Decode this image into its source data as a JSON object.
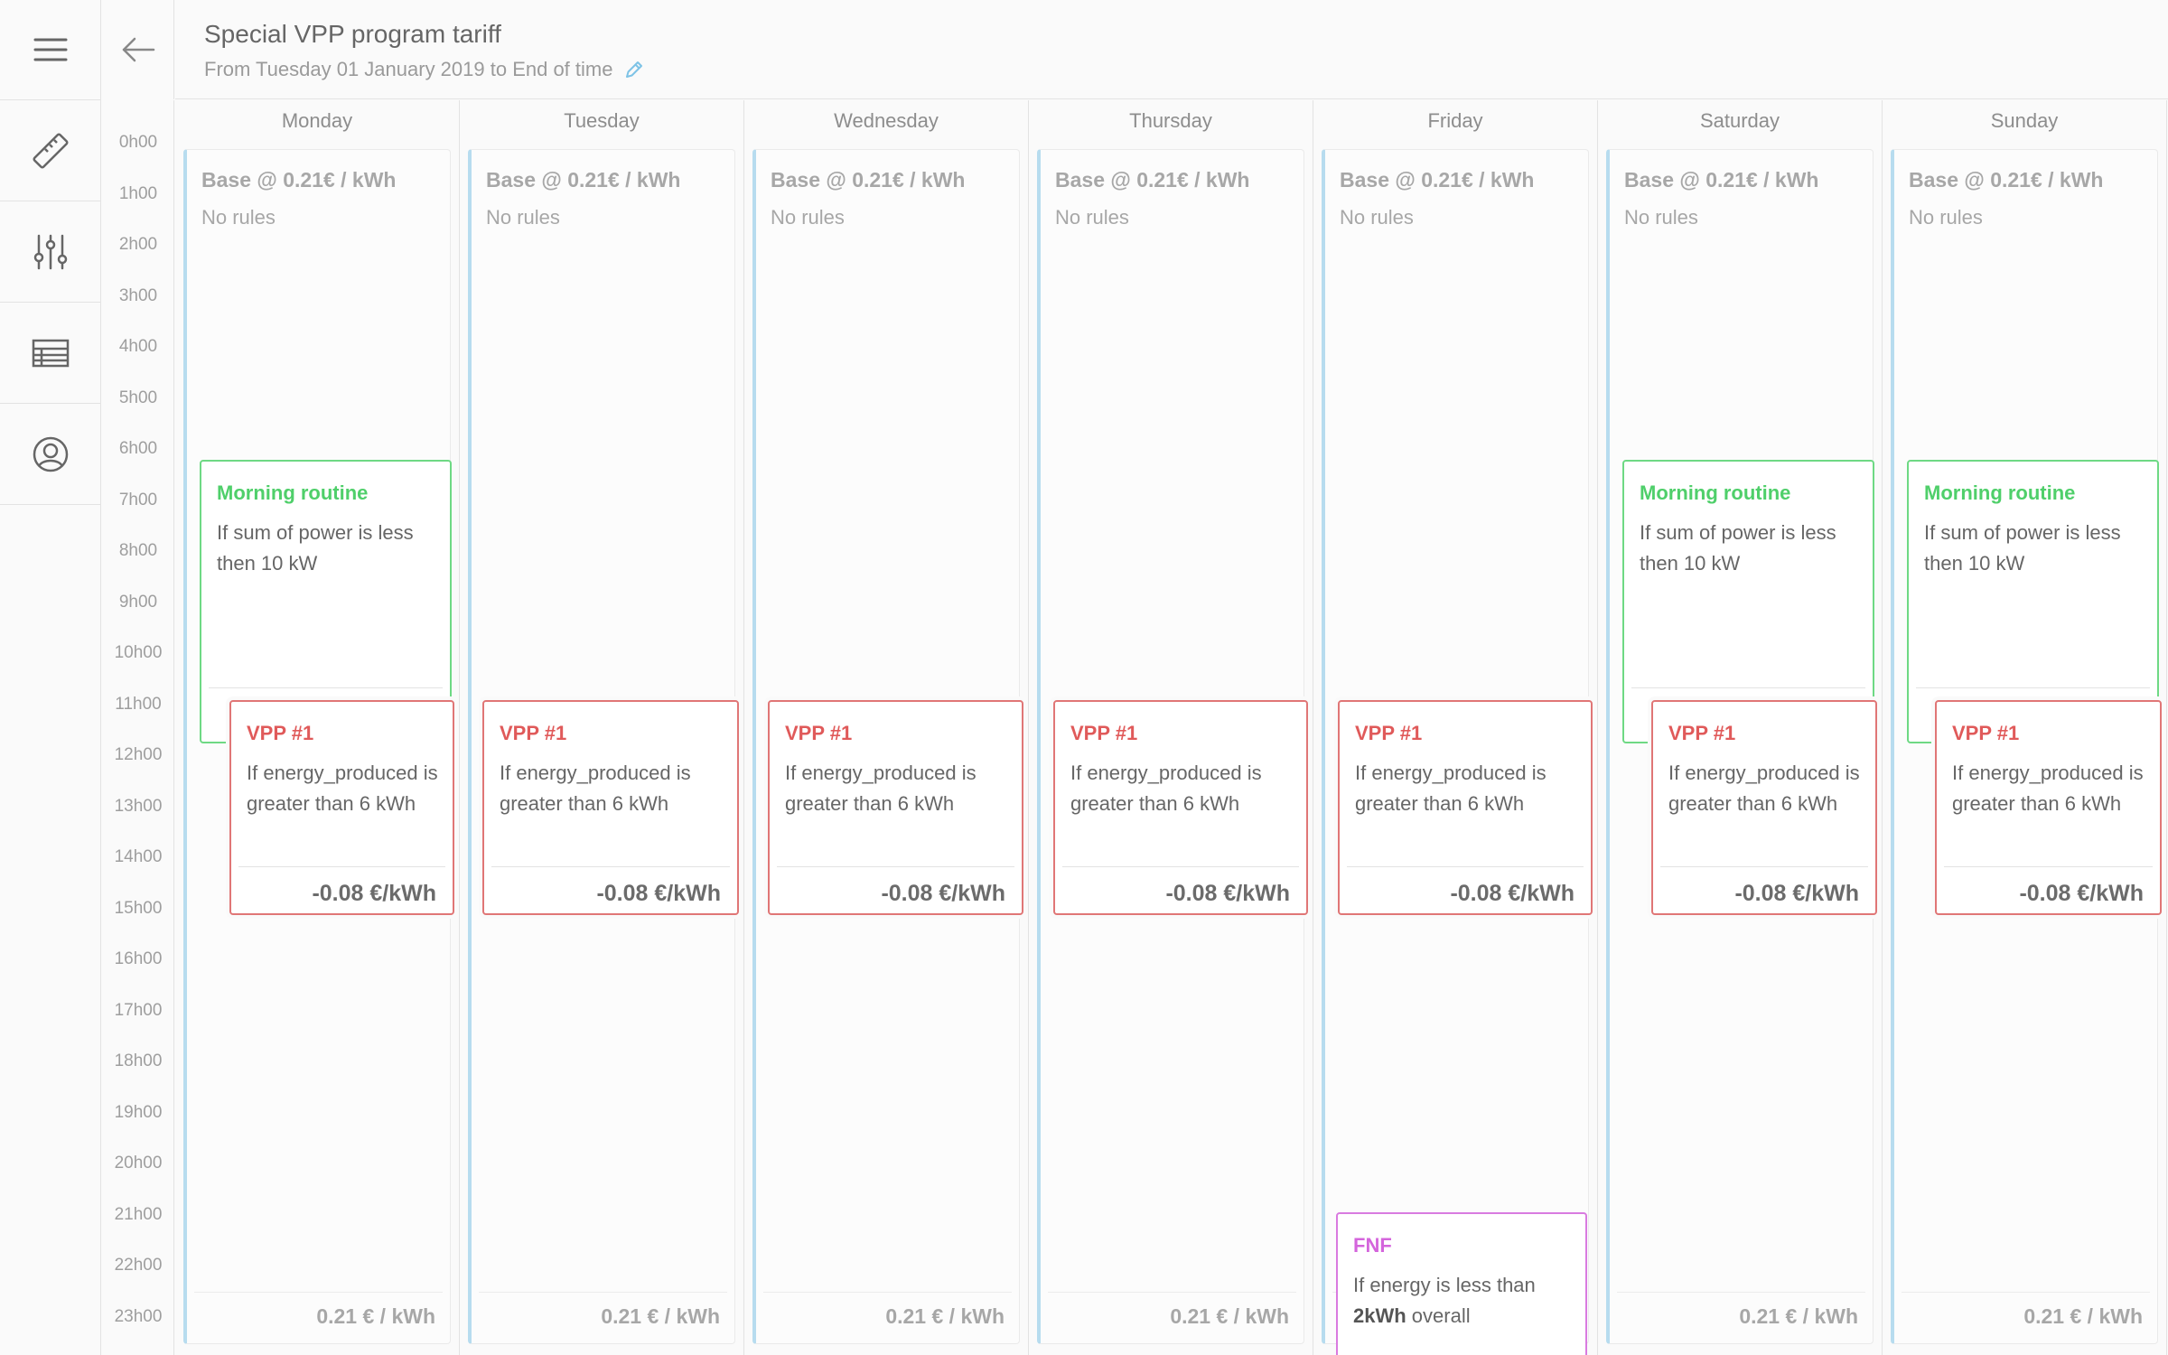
{
  "header": {
    "title": "Special VPP program tariff",
    "subtitle": "From Tuesday 01 January 2019 to End of time"
  },
  "sidebar": {
    "items": [
      {
        "icon": "menu-icon"
      },
      {
        "icon": "ruler-icon"
      },
      {
        "icon": "sliders-icon"
      },
      {
        "icon": "table-icon"
      },
      {
        "icon": "user-circle-icon"
      }
    ]
  },
  "colors": {
    "base_accent": "#b7dcef",
    "morning_routine": "#4fcf6a",
    "vpp": "#e05a5a",
    "fnf": "#d465dc",
    "edit_icon": "#7ec3e6"
  },
  "hours": [
    "0h00",
    "1h00",
    "2h00",
    "3h00",
    "4h00",
    "5h00",
    "6h00",
    "7h00",
    "8h00",
    "9h00",
    "10h00",
    "11h00",
    "12h00",
    "13h00",
    "14h00",
    "15h00",
    "16h00",
    "17h00",
    "18h00",
    "19h00",
    "20h00",
    "21h00",
    "22h00",
    "23h00"
  ],
  "base": {
    "title": "Base @ 0.21€ / kWh",
    "rules": "No rules",
    "price": "0.21 € / kWh"
  },
  "rules": {
    "morning": {
      "name": "Morning routine",
      "description": "If sum of power is less then 10 kW"
    },
    "vpp": {
      "name": "VPP #1",
      "description": "If energy_produced is greater than 6 kWh",
      "price": "-0.08 €/kWh"
    },
    "fnf": {
      "name": "FNF",
      "description_prefix": "If energy is less than",
      "description_bold": "2kWh",
      "description_suffix": " overall"
    }
  },
  "days": [
    {
      "name": "Monday",
      "rules": [
        "morning",
        "vpp"
      ]
    },
    {
      "name": "Tuesday",
      "rules": [
        "vpp"
      ]
    },
    {
      "name": "Wednesday",
      "rules": [
        "vpp"
      ]
    },
    {
      "name": "Thursday",
      "rules": [
        "vpp"
      ]
    },
    {
      "name": "Friday",
      "rules": [
        "vpp",
        "fnf"
      ]
    },
    {
      "name": "Saturday",
      "rules": [
        "morning",
        "vpp"
      ]
    },
    {
      "name": "Sunday",
      "rules": [
        "morning",
        "vpp"
      ]
    }
  ]
}
